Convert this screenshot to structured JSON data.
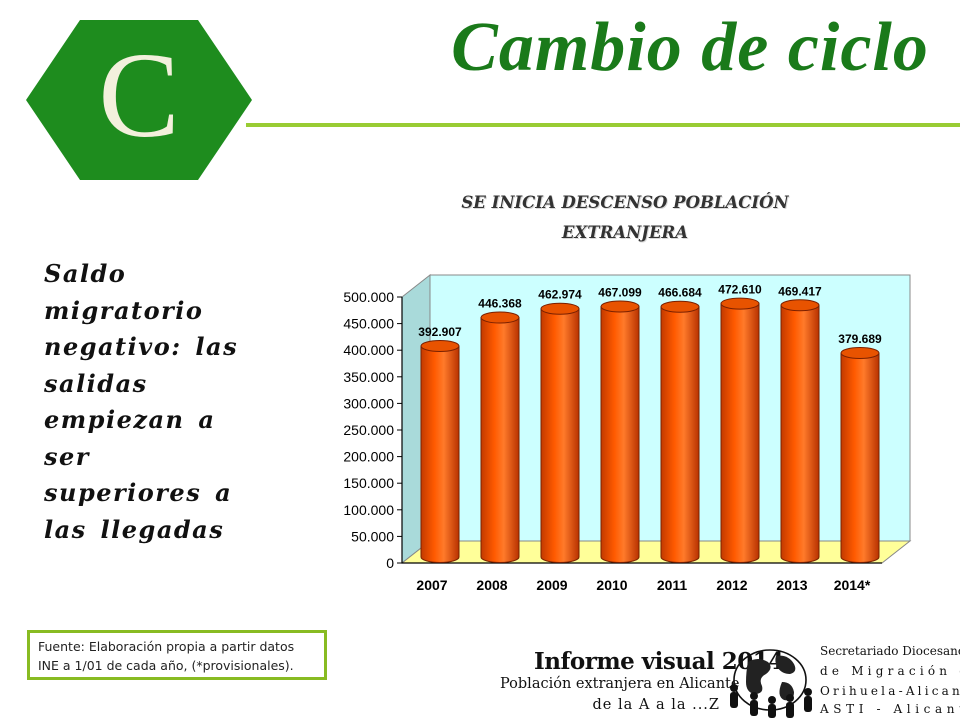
{
  "logo": {
    "letter": "C",
    "hex_color": "#1e8c1e",
    "letter_color": "#f3f0dc"
  },
  "header": {
    "title": "Cambio de ciclo"
  },
  "sidebar": {
    "text_lines": [
      "Saldo",
      "migratorio",
      "negativo: las",
      "salidas",
      "empiezan a",
      "ser",
      "superiores a",
      "las llegadas"
    ]
  },
  "source": {
    "lines": [
      "Fuente: Elaboración propia a partir datos",
      "INE a 1/01 de cada año, (*provisionales)."
    ]
  },
  "footer": {
    "report_title": "Informe visual 2014",
    "report_subtitle_1": "Población extranjera en Alicante",
    "report_subtitle_2": "de la A a la ...Z",
    "org_lines": [
      "Secretariado Diocesano",
      "de Migración de",
      "Orihuela-Alicante",
      "ASTI - Alicante"
    ]
  },
  "chart_data": {
    "type": "bar",
    "title_lines": [
      "SE INICIA DESCENSO POBLACIÓN",
      "EXTRANJERA"
    ],
    "categories": [
      "2007",
      "2008",
      "2009",
      "2010",
      "2011",
      "2012",
      "2013",
      "2014*"
    ],
    "values": [
      392907,
      446368,
      462974,
      467099,
      466684,
      472610,
      469417,
      379689
    ],
    "value_labels": [
      "392.907",
      "446.368",
      "462.974",
      "467.099",
      "466.684",
      "472.610",
      "469.417",
      "379.689"
    ],
    "ylim": [
      0,
      500000
    ],
    "yticks": [
      0,
      50000,
      100000,
      150000,
      200000,
      250000,
      300000,
      350000,
      400000,
      450000,
      500000
    ],
    "ytick_labels": [
      "0",
      "50.000",
      "100.000",
      "150.000",
      "200.000",
      "250.000",
      "300.000",
      "350.000",
      "400.000",
      "450.000",
      "500.000"
    ],
    "xlabel": "",
    "ylabel": "",
    "bar_color": "#ff5a00",
    "wall_color": "#ccffff",
    "floor_color": "#ffff99",
    "grid": false
  }
}
